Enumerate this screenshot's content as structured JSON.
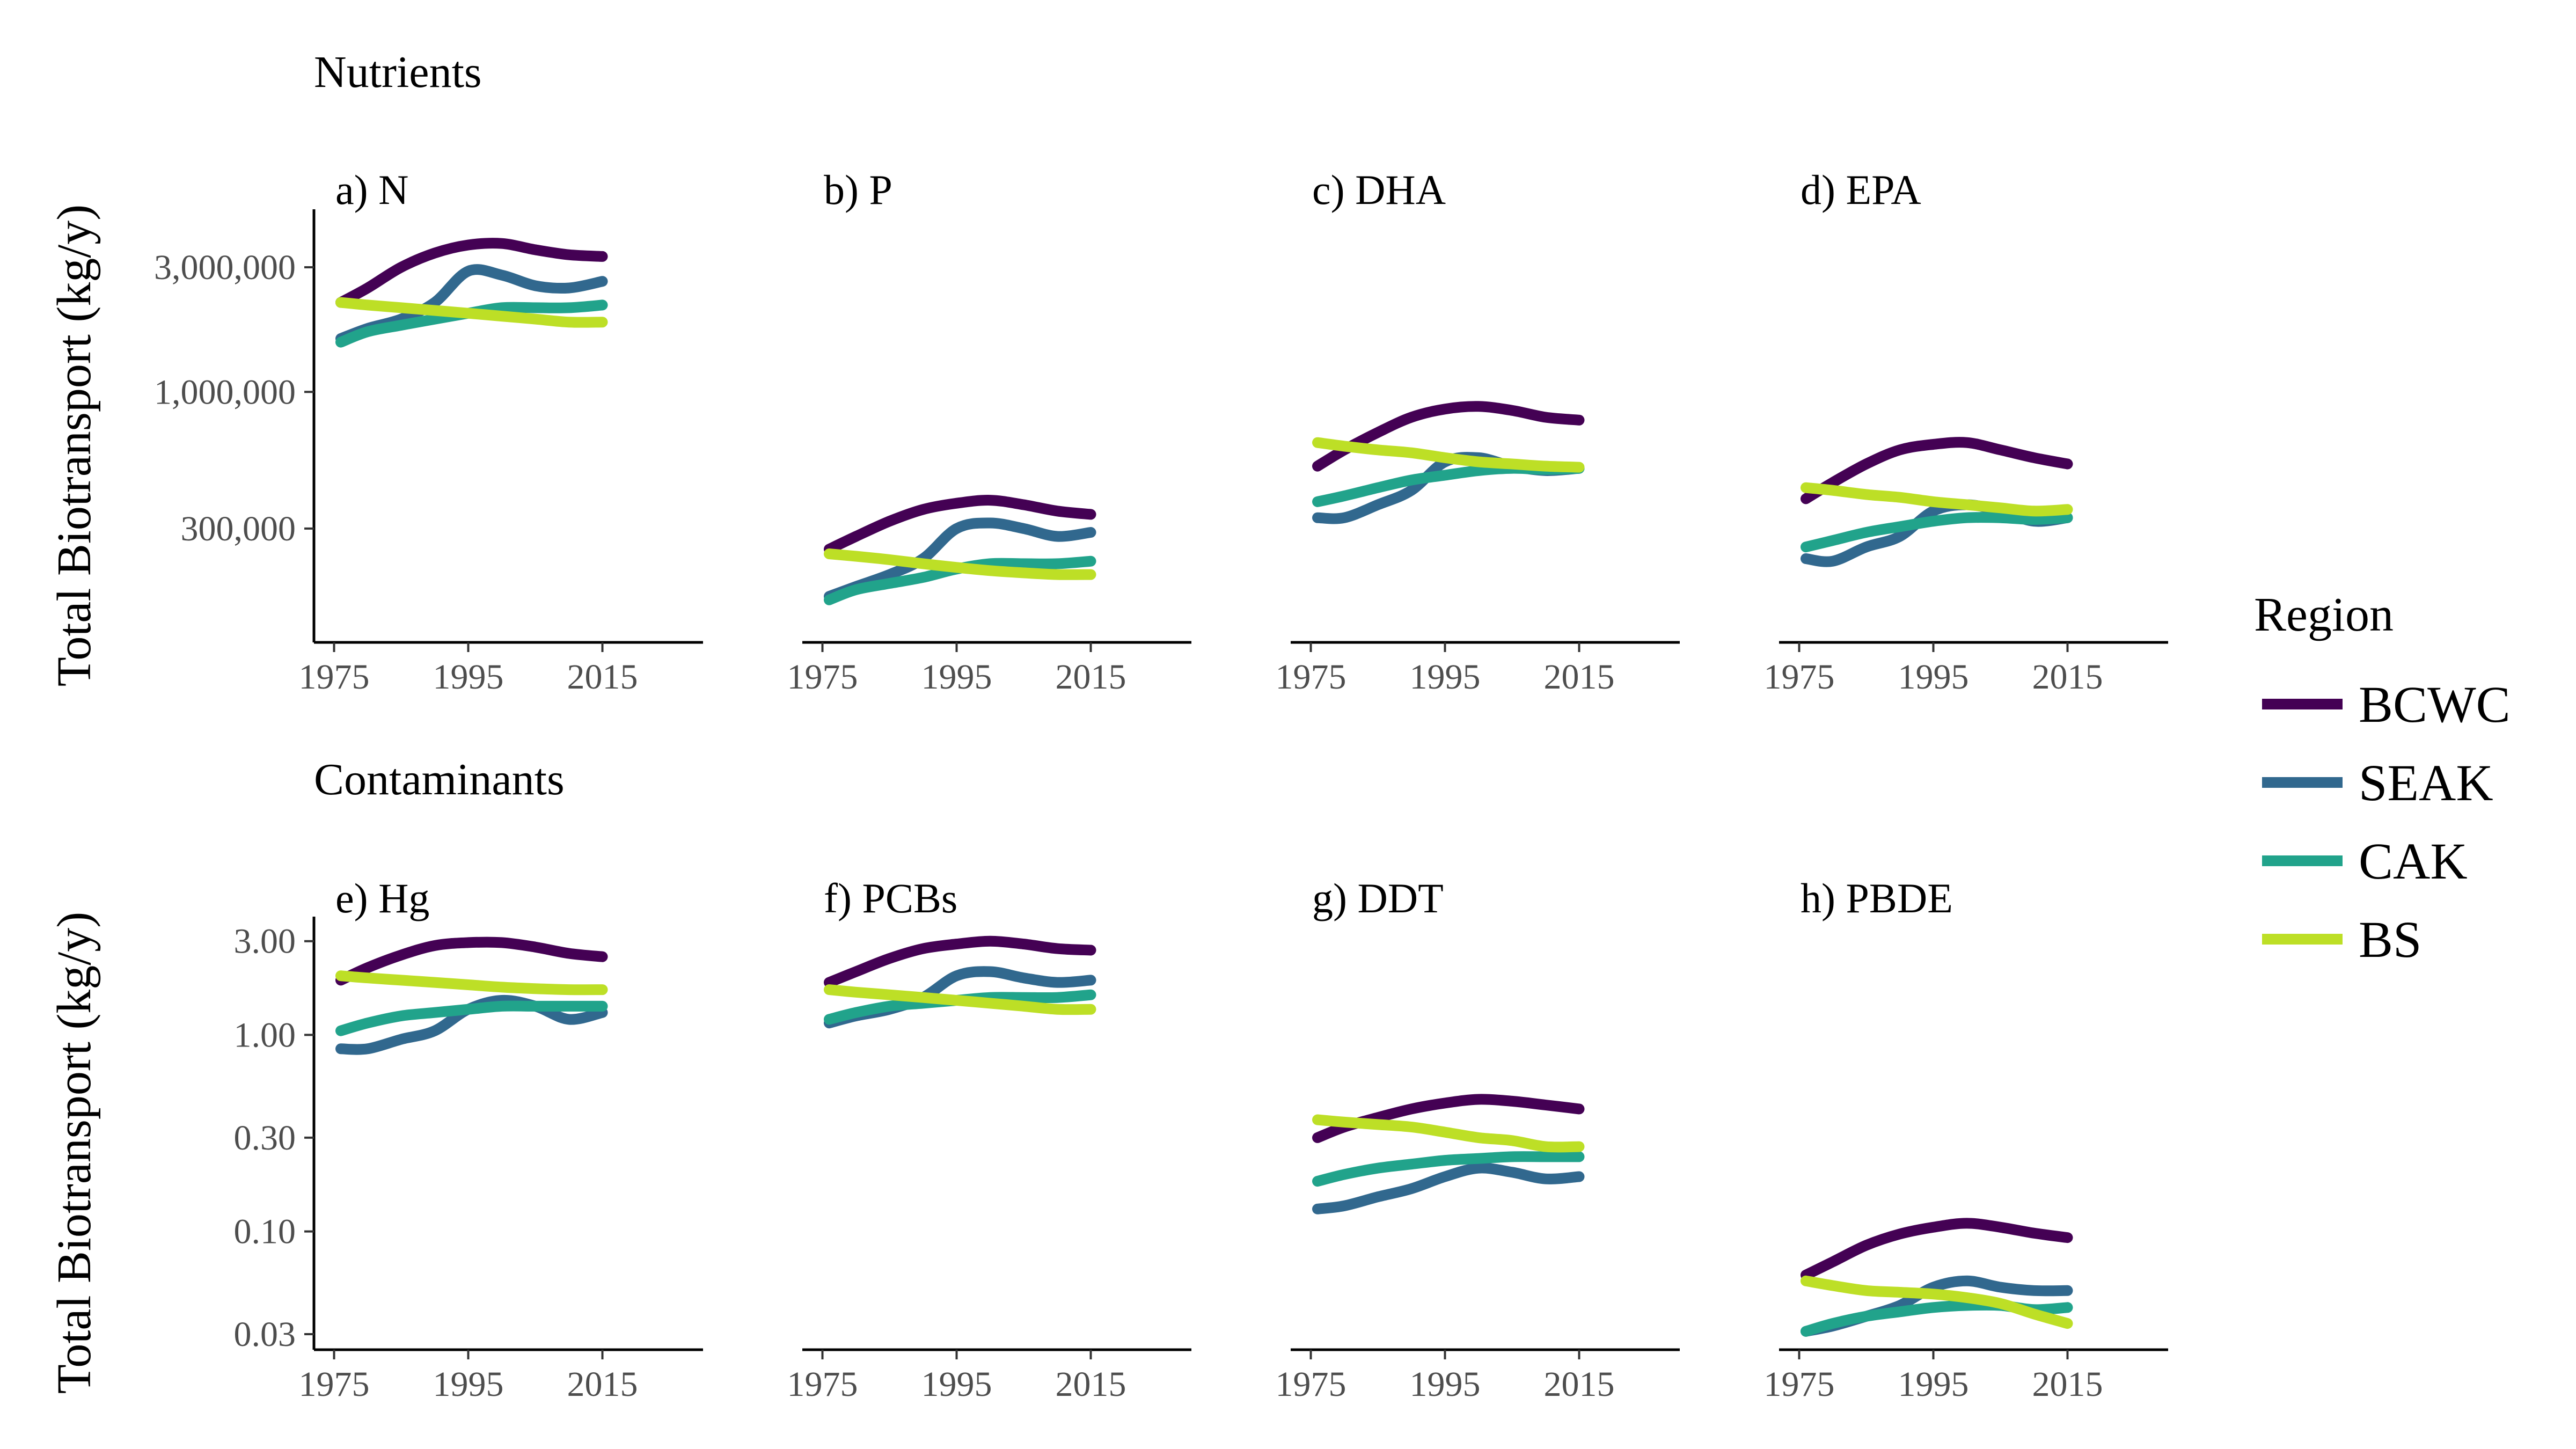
{
  "figure": {
    "sections": [
      "Nutrients",
      "Contaminants"
    ],
    "ylabel": "Total Biotransport (kg/y)",
    "legend": {
      "title": "Region",
      "entries": [
        {
          "name": "BCWC",
          "color": "#440154"
        },
        {
          "name": "SEAK",
          "color": "#31688e"
        },
        {
          "name": "CAK",
          "color": "#21a38b"
        },
        {
          "name": "BS",
          "color": "#bddf26"
        }
      ]
    }
  },
  "chart_data": [
    {
      "type": "line",
      "title": "a) N",
      "group": "Nutrients",
      "scale": "log",
      "xlim": [
        1972,
        2030
      ],
      "xticks": [
        1975,
        1995,
        2015
      ],
      "ylim": [
        110000,
        5000000
      ],
      "yticks": [
        {
          "v": 300000,
          "label": "300,000"
        },
        {
          "v": 1000000,
          "label": "1,000,000"
        },
        {
          "v": 3000000,
          "label": "3,000,000"
        }
      ],
      "x": [
        1976,
        1980,
        1985,
        1990,
        1995,
        2000,
        2005,
        2010,
        2015
      ],
      "series": [
        {
          "name": "BCWC",
          "values": [
            2200000,
            2500000,
            3000000,
            3400000,
            3650000,
            3700000,
            3500000,
            3350000,
            3300000
          ]
        },
        {
          "name": "SEAK",
          "values": [
            1600000,
            1750000,
            1900000,
            2200000,
            2900000,
            2800000,
            2550000,
            2500000,
            2650000
          ]
        },
        {
          "name": "CAK",
          "values": [
            1550000,
            1700000,
            1800000,
            1900000,
            2000000,
            2100000,
            2100000,
            2100000,
            2150000
          ]
        },
        {
          "name": "BS",
          "values": [
            2200000,
            2150000,
            2100000,
            2050000,
            2000000,
            1950000,
            1900000,
            1850000,
            1850000
          ]
        }
      ]
    },
    {
      "type": "line",
      "title": "b) P",
      "group": "Nutrients",
      "scale": "log",
      "xlim": [
        1972,
        2030
      ],
      "xticks": [
        1975,
        1995,
        2015
      ],
      "ylim": [
        110000,
        5000000
      ],
      "yticks": [
        {
          "v": 300000,
          "label": "300,000"
        },
        {
          "v": 1000000,
          "label": "1,000,000"
        },
        {
          "v": 3000000,
          "label": "3,000,000"
        }
      ],
      "x": [
        1976,
        1980,
        1985,
        1990,
        1995,
        2000,
        2005,
        2010,
        2015
      ],
      "series": [
        {
          "name": "BCWC",
          "values": [
            250000,
            280000,
            320000,
            355000,
            375000,
            385000,
            370000,
            350000,
            340000
          ]
        },
        {
          "name": "SEAK",
          "values": [
            165000,
            180000,
            200000,
            230000,
            300000,
            315000,
            300000,
            280000,
            290000
          ]
        },
        {
          "name": "CAK",
          "values": [
            160000,
            175000,
            185000,
            195000,
            210000,
            220000,
            220000,
            220000,
            225000
          ]
        },
        {
          "name": "BS",
          "values": [
            240000,
            235000,
            228000,
            220000,
            213000,
            207000,
            203000,
            200000,
            200000
          ]
        }
      ]
    },
    {
      "type": "line",
      "title": "c) DHA",
      "group": "Nutrients",
      "scale": "log",
      "xlim": [
        1972,
        2030
      ],
      "xticks": [
        1975,
        1995,
        2015
      ],
      "ylim": [
        110000,
        5000000
      ],
      "yticks": [
        {
          "v": 300000,
          "label": "300,000"
        },
        {
          "v": 1000000,
          "label": "1,000,000"
        },
        {
          "v": 3000000,
          "label": "3,000,000"
        }
      ],
      "x": [
        1976,
        1980,
        1985,
        1990,
        1995,
        2000,
        2005,
        2010,
        2015
      ],
      "series": [
        {
          "name": "BCWC",
          "values": [
            520000,
            600000,
            700000,
            800000,
            860000,
            880000,
            850000,
            800000,
            780000
          ]
        },
        {
          "name": "SEAK",
          "values": [
            330000,
            330000,
            370000,
            420000,
            540000,
            560000,
            520000,
            500000,
            510000
          ]
        },
        {
          "name": "CAK",
          "values": [
            380000,
            400000,
            430000,
            460000,
            480000,
            500000,
            510000,
            505000,
            510000
          ]
        },
        {
          "name": "BS",
          "values": [
            640000,
            620000,
            600000,
            585000,
            560000,
            540000,
            530000,
            520000,
            515000
          ]
        }
      ]
    },
    {
      "type": "line",
      "title": "d) EPA",
      "group": "Nutrients",
      "scale": "log",
      "xlim": [
        1972,
        2030
      ],
      "xticks": [
        1975,
        1995,
        2015
      ],
      "ylim": [
        110000,
        5000000
      ],
      "yticks": [
        {
          "v": 300000,
          "label": "300,000"
        },
        {
          "v": 1000000,
          "label": "1,000,000"
        },
        {
          "v": 3000000,
          "label": "3,000,000"
        }
      ],
      "x": [
        1976,
        1980,
        1985,
        1990,
        1995,
        2000,
        2005,
        2010,
        2015
      ],
      "series": [
        {
          "name": "BCWC",
          "values": [
            390000,
            450000,
            530000,
            600000,
            630000,
            640000,
            600000,
            560000,
            530000
          ]
        },
        {
          "name": "SEAK",
          "values": [
            230000,
            225000,
            255000,
            280000,
            350000,
            370000,
            350000,
            320000,
            330000
          ]
        },
        {
          "name": "CAK",
          "values": [
            255000,
            270000,
            290000,
            305000,
            320000,
            330000,
            330000,
            325000,
            330000
          ]
        },
        {
          "name": "BS",
          "values": [
            430000,
            420000,
            405000,
            395000,
            380000,
            370000,
            360000,
            350000,
            355000
          ]
        }
      ]
    },
    {
      "type": "line",
      "title": "e) Hg",
      "group": "Contaminants",
      "scale": "log",
      "xlim": [
        1972,
        2030
      ],
      "xticks": [
        1975,
        1995,
        2015
      ],
      "ylim": [
        0.025,
        4.0
      ],
      "yticks": [
        {
          "v": 0.03,
          "label": "0.03"
        },
        {
          "v": 0.1,
          "label": "0.10"
        },
        {
          "v": 0.3,
          "label": "0.30"
        },
        {
          "v": 1.0,
          "label": "1.00"
        },
        {
          "v": 3.0,
          "label": "3.00"
        }
      ],
      "x": [
        1976,
        1980,
        1985,
        1990,
        1995,
        2000,
        2005,
        2010,
        2015
      ],
      "series": [
        {
          "name": "BCWC",
          "values": [
            1.9,
            2.2,
            2.55,
            2.85,
            2.95,
            2.95,
            2.8,
            2.6,
            2.5
          ]
        },
        {
          "name": "SEAK",
          "values": [
            0.85,
            0.85,
            0.95,
            1.05,
            1.35,
            1.5,
            1.4,
            1.2,
            1.3
          ]
        },
        {
          "name": "CAK",
          "values": [
            1.05,
            1.15,
            1.25,
            1.3,
            1.35,
            1.4,
            1.4,
            1.4,
            1.4
          ]
        },
        {
          "name": "BS",
          "values": [
            2.0,
            1.95,
            1.9,
            1.85,
            1.8,
            1.75,
            1.72,
            1.7,
            1.7
          ]
        }
      ]
    },
    {
      "type": "line",
      "title": "f) PCBs",
      "group": "Contaminants",
      "scale": "log",
      "xlim": [
        1972,
        2030
      ],
      "xticks": [
        1975,
        1995,
        2015
      ],
      "ylim": [
        0.025,
        4.0
      ],
      "yticks": [
        {
          "v": 0.03,
          "label": "0.03"
        },
        {
          "v": 0.1,
          "label": "0.10"
        },
        {
          "v": 0.3,
          "label": "0.30"
        },
        {
          "v": 1.0,
          "label": "1.00"
        },
        {
          "v": 3.0,
          "label": "3.00"
        }
      ],
      "x": [
        1976,
        1980,
        1985,
        1990,
        1995,
        2000,
        2005,
        2010,
        2015
      ],
      "series": [
        {
          "name": "BCWC",
          "values": [
            1.85,
            2.1,
            2.45,
            2.75,
            2.9,
            3.0,
            2.9,
            2.75,
            2.7
          ]
        },
        {
          "name": "SEAK",
          "values": [
            1.15,
            1.25,
            1.35,
            1.55,
            2.0,
            2.1,
            1.95,
            1.85,
            1.9
          ]
        },
        {
          "name": "CAK",
          "values": [
            1.2,
            1.3,
            1.4,
            1.45,
            1.5,
            1.55,
            1.55,
            1.55,
            1.6
          ]
        },
        {
          "name": "BS",
          "values": [
            1.7,
            1.65,
            1.6,
            1.55,
            1.5,
            1.45,
            1.4,
            1.35,
            1.35
          ]
        }
      ]
    },
    {
      "type": "line",
      "title": "g) DDT",
      "group": "Contaminants",
      "scale": "log",
      "xlim": [
        1972,
        2030
      ],
      "xticks": [
        1975,
        1995,
        2015
      ],
      "ylim": [
        0.025,
        4.0
      ],
      "yticks": [
        {
          "v": 0.03,
          "label": "0.03"
        },
        {
          "v": 0.1,
          "label": "0.10"
        },
        {
          "v": 0.3,
          "label": "0.30"
        },
        {
          "v": 1.0,
          "label": "1.00"
        },
        {
          "v": 3.0,
          "label": "3.00"
        }
      ],
      "x": [
        1976,
        1980,
        1985,
        1990,
        1995,
        2000,
        2005,
        2010,
        2015
      ],
      "series": [
        {
          "name": "BCWC",
          "values": [
            0.3,
            0.34,
            0.38,
            0.42,
            0.45,
            0.47,
            0.46,
            0.44,
            0.42
          ]
        },
        {
          "name": "SEAK",
          "values": [
            0.13,
            0.135,
            0.15,
            0.165,
            0.19,
            0.21,
            0.2,
            0.185,
            0.19
          ]
        },
        {
          "name": "CAK",
          "values": [
            0.18,
            0.195,
            0.21,
            0.22,
            0.23,
            0.235,
            0.24,
            0.24,
            0.24
          ]
        },
        {
          "name": "BS",
          "values": [
            0.37,
            0.36,
            0.35,
            0.34,
            0.32,
            0.3,
            0.29,
            0.27,
            0.27
          ]
        }
      ]
    },
    {
      "type": "line",
      "title": "h) PBDE",
      "group": "Contaminants",
      "scale": "log",
      "xlim": [
        1972,
        2030
      ],
      "xticks": [
        1975,
        1995,
        2015
      ],
      "ylim": [
        0.025,
        4.0
      ],
      "yticks": [
        {
          "v": 0.03,
          "label": "0.03"
        },
        {
          "v": 0.1,
          "label": "0.10"
        },
        {
          "v": 0.3,
          "label": "0.30"
        },
        {
          "v": 1.0,
          "label": "1.00"
        },
        {
          "v": 3.0,
          "label": "3.00"
        }
      ],
      "x": [
        1976,
        1980,
        1985,
        1990,
        1995,
        2000,
        2005,
        2010,
        2015
      ],
      "series": [
        {
          "name": "BCWC",
          "values": [
            0.06,
            0.07,
            0.085,
            0.097,
            0.105,
            0.11,
            0.105,
            0.098,
            0.093
          ]
        },
        {
          "name": "SEAK",
          "values": [
            0.031,
            0.033,
            0.037,
            0.042,
            0.052,
            0.056,
            0.052,
            0.05,
            0.05
          ]
        },
        {
          "name": "CAK",
          "values": [
            0.031,
            0.034,
            0.037,
            0.039,
            0.041,
            0.042,
            0.042,
            0.04,
            0.041
          ]
        },
        {
          "name": "BS",
          "values": [
            0.056,
            0.053,
            0.05,
            0.049,
            0.048,
            0.046,
            0.043,
            0.038,
            0.034
          ]
        }
      ]
    }
  ]
}
